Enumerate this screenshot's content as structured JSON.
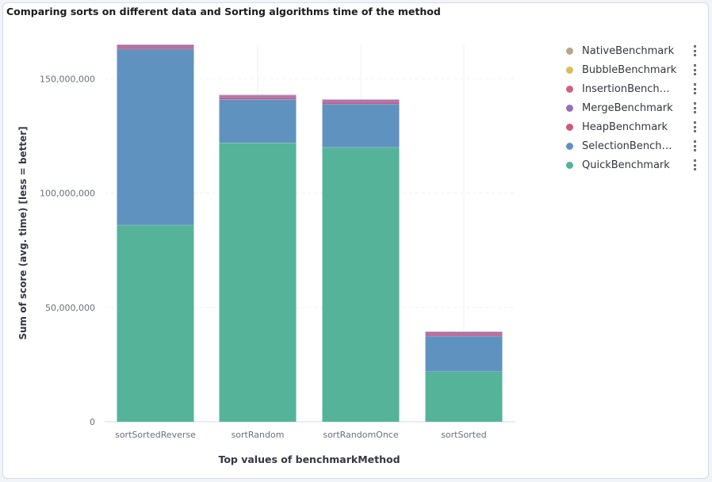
{
  "panel": {
    "title": "Comparing sorts on different data and Sorting algorithms time of the method"
  },
  "legend": {
    "items": [
      {
        "label": "NativeBenchmark",
        "color": "#b9a888"
      },
      {
        "label": "BubbleBenchmark",
        "color": "#d6bf57"
      },
      {
        "label": "InsertionBenchm...",
        "color": "#d36086"
      },
      {
        "label": "MergeBenchmark",
        "color": "#9170b8"
      },
      {
        "label": "HeapBenchmark",
        "color": "#ca5c7f"
      },
      {
        "label": "SelectionBenchm...",
        "color": "#6092c0"
      },
      {
        "label": "QuickBenchmark",
        "color": "#54b399"
      }
    ]
  },
  "chart_data": {
    "type": "bar",
    "stacked": true,
    "title": "Comparing sorts on different data and Sorting algorithms time of the method",
    "xlabel": "Top values of benchmarkMethod",
    "ylabel": "Sum of score (avg. time) [less = better]",
    "ylim": [
      0,
      165000000
    ],
    "yticks": [
      0,
      50000000,
      100000000,
      150000000
    ],
    "ytick_labels": [
      "0",
      "50,000,000",
      "100,000,000",
      "150,000,000"
    ],
    "grid": true,
    "legend_position": "right",
    "categories": [
      "sortSortedReverse",
      "sortRandom",
      "sortRandomOnce",
      "sortSorted"
    ],
    "series": [
      {
        "name": "QuickBenchmark",
        "color": "#54b399",
        "values": [
          86000000,
          122000000,
          120000000,
          22000000
        ]
      },
      {
        "name": "SelectionBenchm...",
        "color": "#6092c0",
        "values": [
          77000000,
          19000000,
          19000000,
          15500000
        ]
      },
      {
        "name": "HeapBenchmark",
        "color": "#ca5c7f",
        "values": [
          1000000,
          1000000,
          1000000,
          1000000
        ]
      },
      {
        "name": "MergeBenchmark",
        "color": "#9170b8",
        "values": [
          800000,
          800000,
          800000,
          800000
        ]
      },
      {
        "name": "InsertionBenchm...",
        "color": "#d36086",
        "values": [
          200000,
          200000,
          200000,
          200000
        ]
      },
      {
        "name": "BubbleBenchmark",
        "color": "#d6bf57",
        "values": [
          0,
          0,
          0,
          0
        ]
      },
      {
        "name": "NativeBenchmark",
        "color": "#b9a888",
        "values": [
          0,
          0,
          0,
          0
        ]
      }
    ]
  }
}
